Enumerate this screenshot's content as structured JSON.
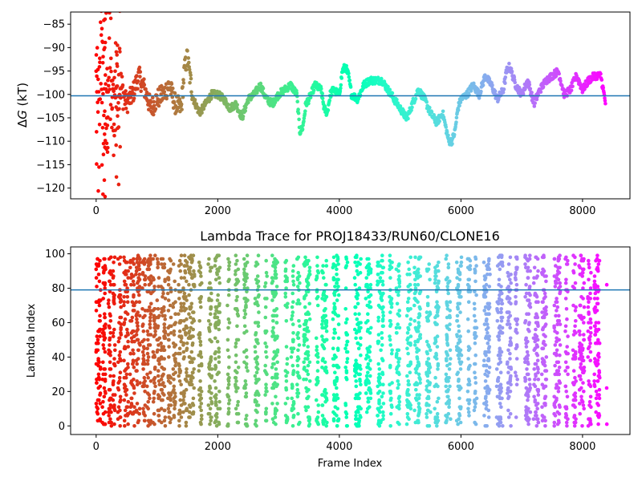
{
  "chart_data": [
    {
      "type": "scatter",
      "title": "",
      "xlabel": "",
      "ylabel_main": "Δ",
      "ylabel_ital": "G",
      "ylabel_unit": " (kT)",
      "xlim": [
        -420,
        8780
      ],
      "ylim": [
        -122.3,
        -82.4
      ],
      "xticks": [
        0,
        2000,
        4000,
        6000,
        8000
      ],
      "yticks": [
        -120,
        -115,
        -110,
        -105,
        -100,
        -95,
        -90,
        -85
      ],
      "hline": -100.3,
      "hline_color": "#1f77b4",
      "colormap": "rainbow (reversed by frame index: red at start, violet at end)",
      "series": [
        {
          "trace_key": [
            [
              0,
              -100
            ],
            [
              40,
              -112
            ],
            [
              80,
              -88
            ],
            [
              120,
              -103
            ],
            [
              160,
              -108
            ],
            [
              200,
              -95
            ],
            [
              260,
              -104
            ],
            [
              320,
              -97
            ],
            [
              400,
              -98
            ],
            [
              500,
              -102
            ],
            [
              600,
              -100
            ],
            [
              700,
              -96
            ],
            [
              800,
              -99
            ],
            [
              900,
              -103
            ],
            [
              1000,
              -101
            ],
            [
              1100,
              -100
            ],
            [
              1200,
              -98
            ],
            [
              1300,
              -102
            ],
            [
              1400,
              -103
            ],
            [
              1450,
              -95
            ],
            [
              1500,
              -92
            ],
            [
              1550,
              -97
            ],
            [
              1600,
              -101
            ],
            [
              1700,
              -104
            ],
            [
              1800,
              -102
            ],
            [
              1900,
              -100
            ],
            [
              2000,
              -100
            ],
            [
              2100,
              -101
            ],
            [
              2200,
              -103
            ],
            [
              2300,
              -102
            ],
            [
              2400,
              -105
            ],
            [
              2450,
              -103
            ],
            [
              2500,
              -101
            ],
            [
              2600,
              -100
            ],
            [
              2700,
              -98
            ],
            [
              2800,
              -101
            ],
            [
              2900,
              -102
            ],
            [
              3000,
              -100
            ],
            [
              3100,
              -99
            ],
            [
              3200,
              -98
            ],
            [
              3300,
              -100
            ],
            [
              3350,
              -108
            ],
            [
              3400,
              -107
            ],
            [
              3450,
              -102
            ],
            [
              3500,
              -101
            ],
            [
              3600,
              -98
            ],
            [
              3700,
              -99
            ],
            [
              3750,
              -103
            ],
            [
              3800,
              -104
            ],
            [
              3850,
              -100
            ],
            [
              3900,
              -99
            ],
            [
              4000,
              -100
            ],
            [
              4050,
              -95
            ],
            [
              4100,
              -94
            ],
            [
              4150,
              -96
            ],
            [
              4200,
              -100
            ],
            [
              4300,
              -101
            ],
            [
              4400,
              -98
            ],
            [
              4500,
              -97
            ],
            [
              4600,
              -97
            ],
            [
              4700,
              -97
            ],
            [
              4800,
              -99
            ],
            [
              4900,
              -101
            ],
            [
              5000,
              -103
            ],
            [
              5100,
              -105
            ],
            [
              5150,
              -104
            ],
            [
              5200,
              -102
            ],
            [
              5300,
              -99
            ],
            [
              5400,
              -101
            ],
            [
              5500,
              -104
            ],
            [
              5600,
              -106
            ],
            [
              5700,
              -104
            ],
            [
              5750,
              -107
            ],
            [
              5800,
              -110
            ],
            [
              5850,
              -110
            ],
            [
              5900,
              -108
            ],
            [
              5950,
              -103
            ],
            [
              6000,
              -101
            ],
            [
              6100,
              -100
            ],
            [
              6200,
              -98
            ],
            [
              6300,
              -100
            ],
            [
              6400,
              -96
            ],
            [
              6500,
              -98
            ],
            [
              6600,
              -101
            ],
            [
              6700,
              -99
            ],
            [
              6750,
              -95
            ],
            [
              6800,
              -94
            ],
            [
              6900,
              -98
            ],
            [
              7000,
              -100
            ],
            [
              7100,
              -97
            ],
            [
              7200,
              -102
            ],
            [
              7300,
              -99
            ],
            [
              7400,
              -97
            ],
            [
              7500,
              -96
            ],
            [
              7600,
              -95
            ],
            [
              7700,
              -100
            ],
            [
              7800,
              -99
            ],
            [
              7900,
              -96
            ],
            [
              8000,
              -99
            ],
            [
              8100,
              -97
            ],
            [
              8200,
              -96
            ],
            [
              8300,
              -96
            ],
            [
              8380,
              -102
            ]
          ]
        }
      ]
    },
    {
      "type": "scatter",
      "title": "Lambda Trace for PROJ18433/RUN60/CLONE16",
      "xlabel": "Frame Index",
      "ylabel": "Lambda Index",
      "xlim": [
        -420,
        8780
      ],
      "ylim": [
        -5,
        104
      ],
      "xticks": [
        0,
        2000,
        4000,
        6000,
        8000
      ],
      "yticks": [
        0,
        20,
        40,
        60,
        80,
        100
      ],
      "hline": 79,
      "hline_color": "#1f77b4",
      "colormap": "rainbow (reversed by frame index: red at start, violet at end)",
      "series": [
        {
          "frames": 8400,
          "lambda_range": [
            0,
            99
          ],
          "description": "Dense vertical stripes of lambda samples spanning 0–99 across frame index, with gaps between sampling blocks"
        }
      ]
    }
  ]
}
